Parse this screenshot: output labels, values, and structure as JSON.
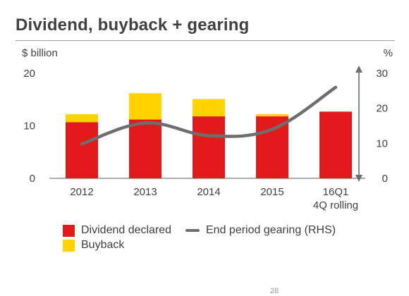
{
  "title": "Dividend, buyback + gearing",
  "page_number": "28",
  "colors": {
    "dividend": "#e31a1c",
    "buyback": "#ffd200",
    "gearing": "#6e6e6e",
    "axis": "#7a7a7a",
    "text": "#404040"
  },
  "chart_data": {
    "type": "bar",
    "stacked": true,
    "title": "Dividend, buyback + gearing",
    "categories": [
      "2012",
      "2013",
      "2014",
      "2015",
      "16Q1\n4Q rolling"
    ],
    "y_left_label": "$ billion",
    "y_right_label": "%",
    "ylim_left": [
      0,
      20
    ],
    "ylim_right": [
      0,
      30
    ],
    "yticks_left": [
      "0",
      "10",
      "20"
    ],
    "yticks_right": [
      "0",
      "10",
      "20",
      "30"
    ],
    "series": [
      {
        "name": "Dividend declared",
        "type": "bar",
        "axis": "left",
        "values": [
          10.7,
          11.2,
          11.8,
          11.8,
          12.7
        ]
      },
      {
        "name": "Buyback",
        "type": "bar",
        "axis": "left",
        "values": [
          1.5,
          5.0,
          3.3,
          0.4,
          0
        ]
      },
      {
        "name": "End period gearing (RHS)",
        "type": "line",
        "axis": "right",
        "values": [
          9.8,
          15.8,
          12.2,
          14.0,
          26.0
        ]
      }
    ],
    "legend": [
      "Dividend declared",
      "End period gearing (RHS)",
      "Buyback"
    ],
    "legend_position": "bottom-left"
  }
}
